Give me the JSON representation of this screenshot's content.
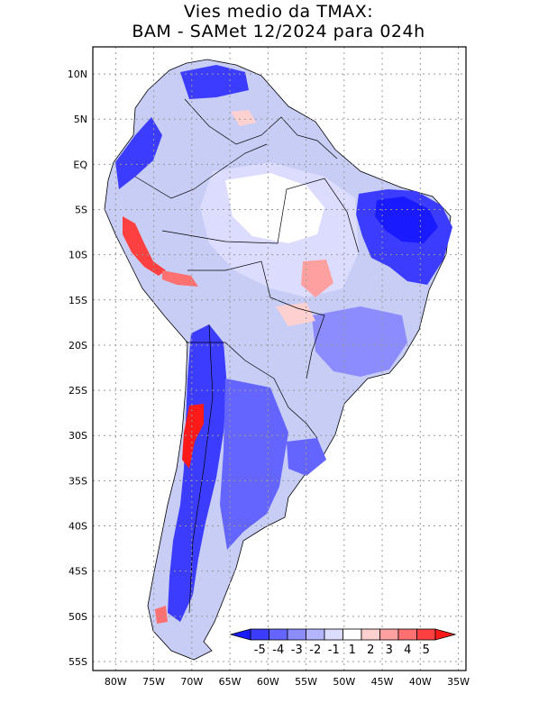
{
  "title": {
    "line1": "Vies medio da TMAX:",
    "line2": "BAM - SAMet 12/2024  para 024h"
  },
  "map": {
    "lon_range": [
      -83,
      -34
    ],
    "lat_range": [
      -56,
      13
    ],
    "lat_ticks": [
      "10N",
      "5N",
      "EQ",
      "5S",
      "10S",
      "15S",
      "20S",
      "25S",
      "30S",
      "35S",
      "40S",
      "45S",
      "50S",
      "55S"
    ],
    "lat_values": [
      10,
      5,
      0,
      -5,
      -10,
      -15,
      -20,
      -25,
      -30,
      -35,
      -40,
      -45,
      -50,
      -55
    ],
    "lon_ticks": [
      "80W",
      "75W",
      "70W",
      "65W",
      "60W",
      "55W",
      "50W",
      "45W",
      "40W",
      "35W"
    ],
    "lon_values": [
      -80,
      -75,
      -70,
      -65,
      -60,
      -55,
      -50,
      -45,
      -40,
      -35
    ],
    "grid": "dotted"
  },
  "colorbar": {
    "labels": [
      "-5",
      "-4",
      "-3",
      "-2",
      "-1",
      "1",
      "2",
      "3",
      "4",
      "5"
    ],
    "colors": {
      "lt-5": "#1a1aff",
      "-5--4": "#3c3cff",
      "-4--3": "#6464ff",
      "-3--2": "#8c8cff",
      "-2--1": "#b4b4ff",
      "-1-1": "#dcdcff",
      "1-2": "#ffffff",
      "2-3": "#ffd0d0",
      "3-4": "#ffa0a0",
      "4-5": "#ff7070",
      "gt5": "#ff4040",
      "max": "#ff1a1a"
    }
  }
}
